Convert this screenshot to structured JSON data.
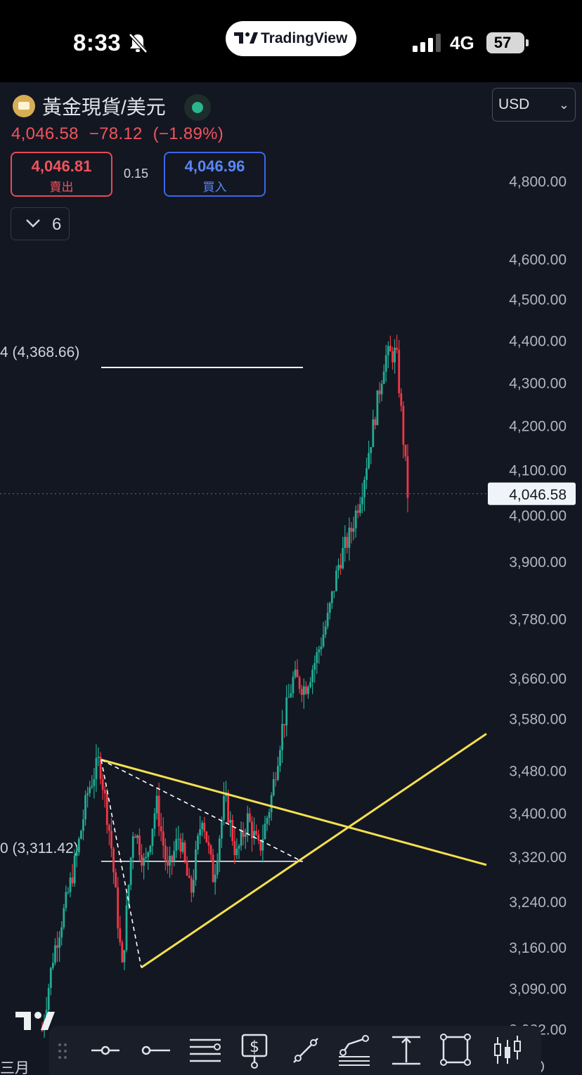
{
  "status_bar": {
    "time": "8:33",
    "network": "4G",
    "battery": "57",
    "app_pill_label": "TradingView",
    "icons": [
      "bell-slash-icon",
      "signal-icon",
      "battery-icon"
    ]
  },
  "header": {
    "symbol_name": "黃金現貨/美元",
    "last_price": "4,046.58",
    "change": "−78.12",
    "change_pct": "(−1.89%)",
    "sell_price": "4,046.81",
    "sell_label": "賣出",
    "spread": "0.15",
    "buy_price": "4,046.96",
    "buy_label": "買入",
    "indicator_count": "6",
    "currency": "USD"
  },
  "colors": {
    "background": "#131722",
    "up": "#22ab94",
    "down": "#f23645",
    "trendline": "#f5e050",
    "sell": "#e84b55",
    "buy": "#3c66e8"
  },
  "price_axis": {
    "labels": [
      "4,800.00",
      "4,600.00",
      "4,500.00",
      "4,400.00",
      "4,300.00",
      "4,200.00",
      "4,100.00",
      "4,000.00",
      "3,900.00",
      "3,780.00",
      "3,660.00",
      "3,580.00",
      "3,480.00",
      "3,400.00",
      "3,320.00",
      "3,240.00",
      "3,160.00",
      "3,090.00",
      "3,022.00"
    ],
    "current_price_tag": "4,046.58",
    "scale": "log"
  },
  "annotations": {
    "high_line_label": "4 (4,368.66)",
    "base_line_label": "0 (3,311.42)",
    "time_label": "三月"
  },
  "toolbar": {
    "tools": [
      "horizontal-ray-tool",
      "horizontal-line-tool",
      "parallel-channel-tool",
      "price-label-tool",
      "trend-line-tool",
      "fib-retracement-tool",
      "price-range-tool",
      "rectangle-tool",
      "candle-pattern-tool"
    ]
  },
  "chart_data": {
    "type": "candlestick",
    "symbol": "黃金現貨/美元",
    "y_scale": "log",
    "ylim": [
      2995,
      4940
    ],
    "last": 4046.58,
    "swings": [
      3020,
      3150,
      3230,
      3320,
      3440,
      3500,
      3350,
      3120,
      3380,
      3300,
      3420,
      3290,
      3360,
      3250,
      3400,
      3280,
      3430,
      3320,
      3390,
      3330,
      3420,
      3560,
      3660,
      3640,
      3700,
      3780,
      3900,
      3960,
      4060,
      4200,
      4360,
      4370,
      4046.58
    ],
    "horizontal_levels": [
      4368.66,
      3311.42
    ],
    "trendlines": [
      {
        "from": [
          0,
          3500
        ],
        "to": [
          1,
          3305
        ]
      },
      {
        "from": [
          0,
          3125
        ],
        "to": [
          1,
          3550
        ]
      }
    ]
  }
}
